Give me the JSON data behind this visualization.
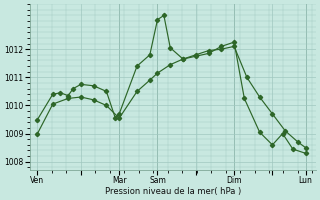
{
  "bg_color": "#c8e8e0",
  "grid_color": "#a0c8c0",
  "line_color": "#2d6628",
  "xlabel": "Pression niveau de la mer( hPa )",
  "ylim": [
    1007.7,
    1013.6
  ],
  "yticks": [
    1008,
    1009,
    1010,
    1011,
    1012
  ],
  "xtick_labels": [
    "Ven",
    "",
    "Mar",
    "Sam",
    "",
    "Dim",
    "",
    "Lun"
  ],
  "xtick_positions": [
    0.3,
    2.0,
    3.5,
    5.0,
    6.5,
    8.0,
    9.5,
    10.8
  ],
  "series1_x": [
    0.3,
    0.9,
    1.2,
    1.5,
    1.7,
    2.0,
    2.5,
    3.0,
    3.35,
    3.5,
    4.2,
    4.7,
    5.0,
    5.25,
    5.5,
    6.0,
    6.5,
    7.0,
    7.5,
    8.0,
    8.4,
    9.0,
    9.5,
    9.9,
    10.3,
    10.8
  ],
  "series1_y": [
    1009.5,
    1010.4,
    1010.45,
    1010.35,
    1010.6,
    1010.75,
    1010.7,
    1010.5,
    1009.55,
    1009.7,
    1011.4,
    1011.8,
    1013.05,
    1013.2,
    1012.05,
    1011.65,
    1011.75,
    1011.85,
    1012.1,
    1012.25,
    1010.25,
    1009.05,
    1008.6,
    1009.0,
    1008.45,
    1008.3
  ],
  "series2_x": [
    0.3,
    0.9,
    1.5,
    2.0,
    2.5,
    3.0,
    3.5,
    4.2,
    4.7,
    5.0,
    5.5,
    6.0,
    6.5,
    7.0,
    7.5,
    8.0,
    8.5,
    9.0,
    9.5,
    10.0,
    10.5,
    10.8
  ],
  "series2_y": [
    1009.0,
    1010.05,
    1010.25,
    1010.3,
    1010.2,
    1010.0,
    1009.55,
    1010.5,
    1010.9,
    1011.15,
    1011.45,
    1011.65,
    1011.8,
    1011.95,
    1012.0,
    1012.1,
    1011.0,
    1010.3,
    1009.7,
    1009.1,
    1008.7,
    1008.5
  ]
}
